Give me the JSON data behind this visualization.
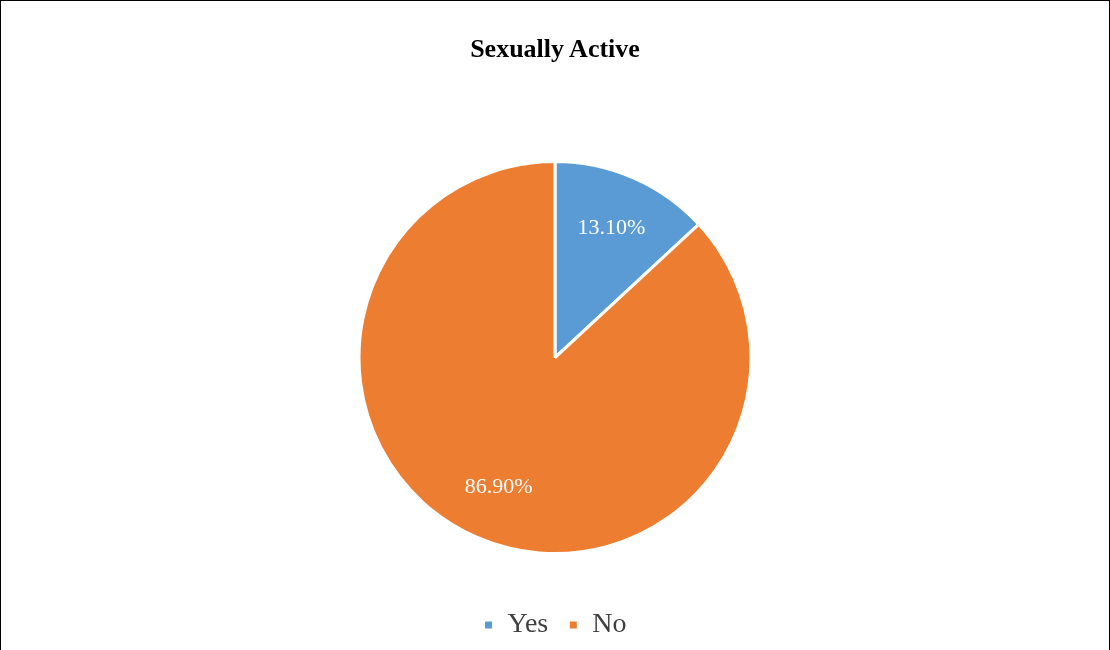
{
  "chart_data": {
    "type": "pie",
    "title": "Sexually Active",
    "categories": [
      "Yes",
      "No"
    ],
    "values": [
      13.1,
      86.9
    ],
    "colors": [
      "#5b9bd5",
      "#ed7d31"
    ],
    "value_labels": [
      "13.10%",
      "86.90%"
    ],
    "legend": "bottom"
  }
}
